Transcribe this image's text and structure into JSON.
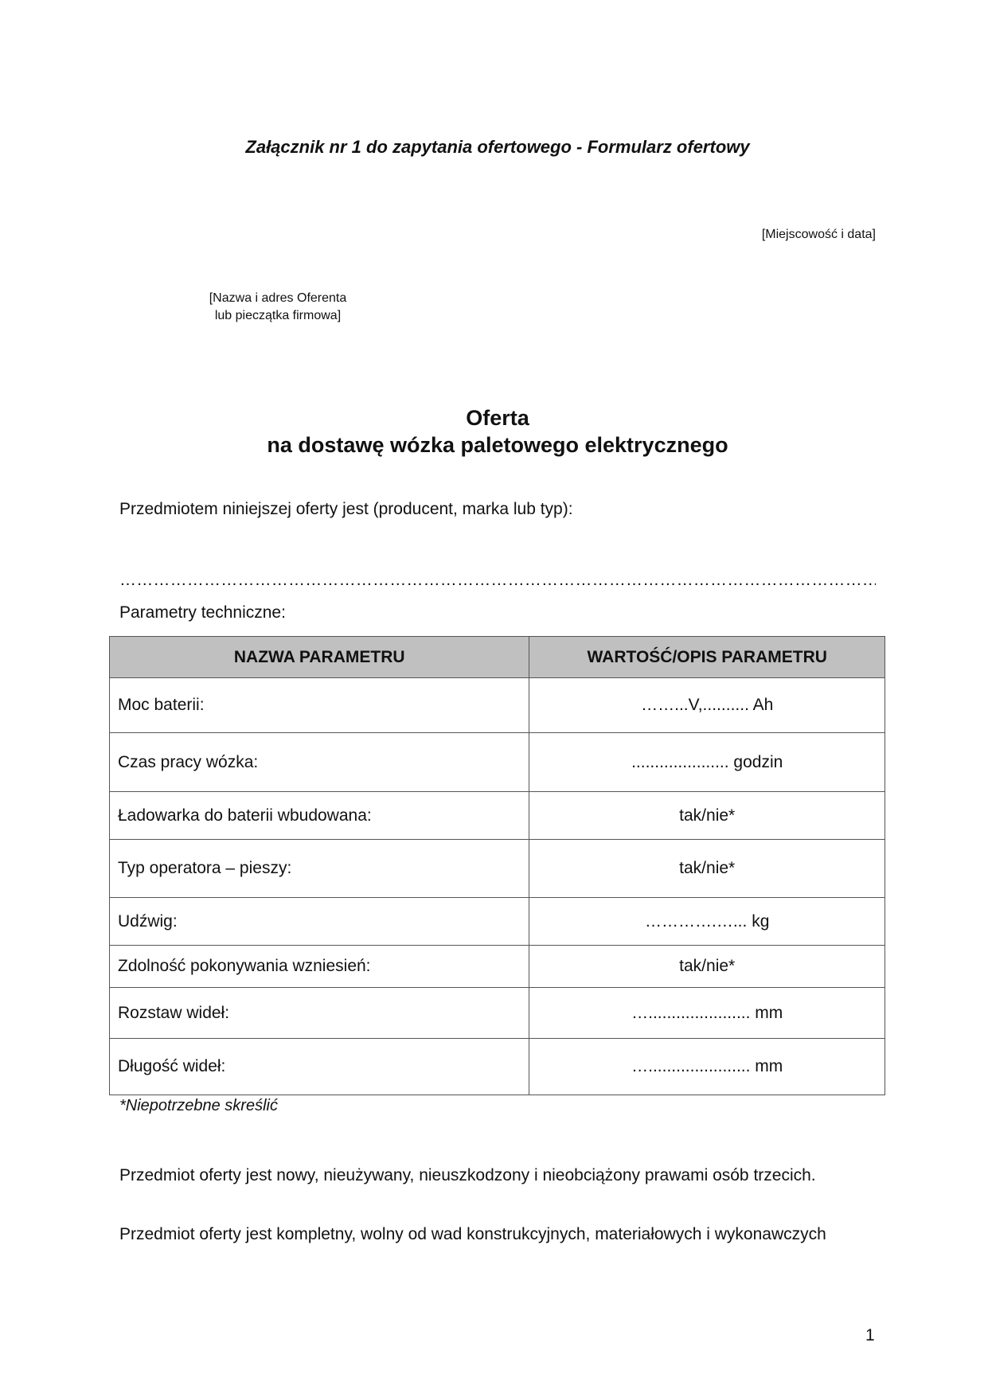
{
  "document": {
    "title": "Załącznik nr 1 do zapytania ofertowego  - Formularz ofertowy",
    "place_date": "[Miejscowość i data]",
    "offeror_line1": "[Nazwa i adres Oferenta",
    "offeror_line2": "lub pieczątka firmowa]",
    "heading_line1": "Oferta",
    "heading_line2": "na dostawę wózka paletowego elektrycznego",
    "subject_label": "Przedmiotem niniejszej oferty jest (producent, marka lub typ):",
    "subject_dots": "……………………………………………………………………………………………………………………………………………",
    "params_label": "Parametry techniczne:",
    "table": {
      "headers": [
        "NAZWA PARAMETRU",
        "WARTOŚĆ/OPIS PARAMETRU"
      ],
      "rows": [
        {
          "name": "Moc baterii:",
          "value": "……...V,.......... Ah"
        },
        {
          "name": "Czas pracy wózka:",
          "value": "..................... godzin"
        },
        {
          "name": "Ładowarka do baterii wbudowana:",
          "value": "tak/nie*"
        },
        {
          "name": "Typ operatora – pieszy:",
          "value": "tak/nie*"
        },
        {
          "name": "Udźwig:",
          "value": "………….…... kg"
        },
        {
          "name": "Zdolność pokonywania wzniesień:",
          "value": "tak/nie*"
        },
        {
          "name": "Rozstaw wideł:",
          "value": "…...................... mm"
        },
        {
          "name": "Długość wideł:",
          "value": "…...................... mm"
        }
      ]
    },
    "footnote": "*Niepotrzebne skreślić",
    "paragraph1": "Przedmiot oferty jest nowy, nieużywany, nieuszkodzony i nieobciążony prawami osób trzecich.",
    "paragraph2": "Przedmiot oferty jest kompletny, wolny od wad konstrukcyjnych, materiałowych i wykonawczych",
    "page_number": "1",
    "header_fill_color": "#c0c0c0"
  }
}
